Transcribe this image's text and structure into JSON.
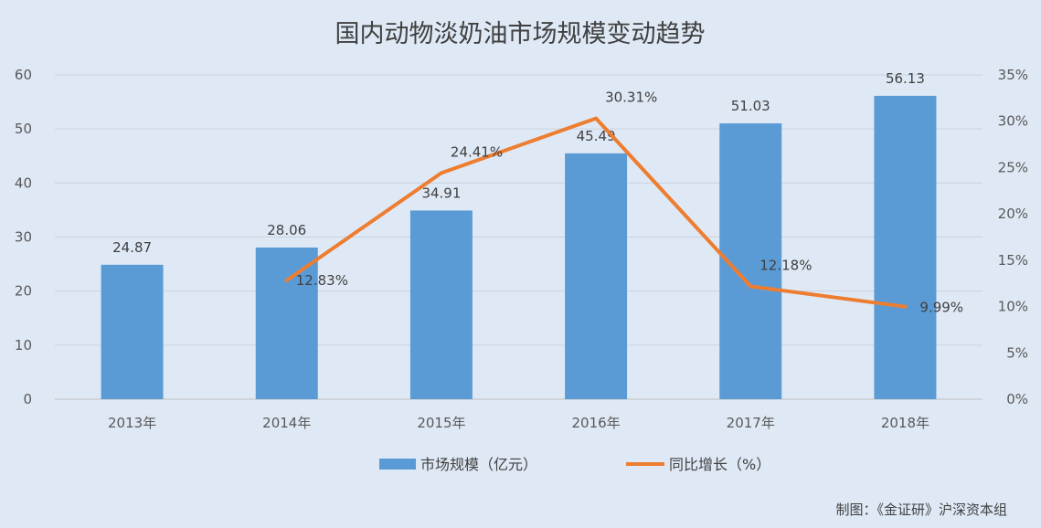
{
  "chart_data": {
    "type": "bar",
    "title": "国内动物淡奶油市场规模变动趋势",
    "categories": [
      "2013年",
      "2014年",
      "2015年",
      "2016年",
      "2017年",
      "2018年"
    ],
    "series": [
      {
        "name": "市场规模（亿元）",
        "type": "bar",
        "axis": "left",
        "color": "#5b9bd5",
        "values": [
          24.87,
          28.06,
          34.91,
          45.49,
          51.03,
          56.13
        ],
        "labels": [
          "24.87",
          "28.06",
          "34.91",
          "45.49",
          "51.03",
          "56.13"
        ]
      },
      {
        "name": "同比增长（%）",
        "type": "line",
        "axis": "right",
        "color": "#ed7d31",
        "values": [
          null,
          12.83,
          24.41,
          30.31,
          12.18,
          9.99
        ],
        "labels": [
          "",
          "12.83%",
          "24.41%",
          "30.31%",
          "12.18%",
          "9.99%"
        ]
      }
    ],
    "ylim": [
      0,
      60
    ],
    "y_ticks": [
      "0",
      "10",
      "20",
      "30",
      "40",
      "50",
      "60"
    ],
    "y2lim": [
      0,
      35
    ],
    "y2_ticks": [
      "0%",
      "5%",
      "10%",
      "15%",
      "20%",
      "25%",
      "30%",
      "35%"
    ],
    "grid": true,
    "legend_position": "bottom"
  },
  "source": "制图：《金证研》沪深资本组"
}
